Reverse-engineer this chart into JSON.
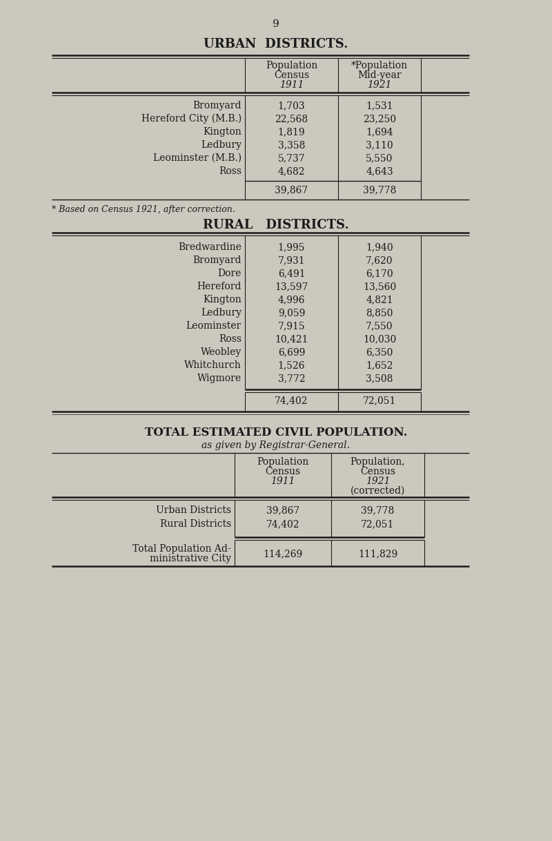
{
  "page_number": "9",
  "bg_color": "#cbc8be",
  "text_color": "#1a1a1a",
  "urban_title": "URBAN  DISTRICTS.",
  "urban_col1_header": [
    "Population",
    "Census",
    "1911"
  ],
  "urban_col2_header": [
    "*Population",
    "Mid-year",
    "1921"
  ],
  "urban_rows": [
    [
      "Bromyard",
      "1,703",
      "1,531"
    ],
    [
      "Hereford City (M.B.)",
      "22,568",
      "23,250"
    ],
    [
      "Kington",
      "1,819",
      "1,694"
    ],
    [
      "Ledbury",
      "3,358",
      "3,110"
    ],
    [
      "Leominster (M.B.)",
      "5,737",
      "5,550"
    ],
    [
      "Ross",
      "4,682",
      "4,643"
    ]
  ],
  "urban_total": [
    "39,867",
    "39,778"
  ],
  "urban_footnote": "* Based on Census 1921, after correction.",
  "rural_title": "RURAL   DISTRICTS.",
  "rural_rows": [
    [
      "Bredwardine",
      "1,995",
      "1,940"
    ],
    [
      "Bromyard",
      "7,931",
      "7,620"
    ],
    [
      "Dore",
      "6,491",
      "6,170"
    ],
    [
      "Hereford",
      "13,597",
      "13,560"
    ],
    [
      "Kington",
      "4,996",
      "4,821"
    ],
    [
      "Ledbury",
      "9,059",
      "8,850"
    ],
    [
      "Leominster",
      "7,915",
      "7,550"
    ],
    [
      "Ross",
      "10,421",
      "10,030"
    ],
    [
      "Weobley",
      "6,699",
      "6,350"
    ],
    [
      "Whitchurch",
      "1,526",
      "1,652"
    ],
    [
      "Wigmore",
      "3,772",
      "3,508"
    ]
  ],
  "rural_total": [
    "74,402",
    "72,051"
  ],
  "total_title": "TOTAL ESTIMATED CIVIL POPULATION.",
  "total_subtitle": "as given by Registrar-General.",
  "total_col1_header": [
    "Population",
    "Census",
    "1911",
    ""
  ],
  "total_col2_header": [
    "Population,",
    "Census",
    "1921",
    "(corrected)"
  ],
  "total_rows": [
    [
      "Urban Districts",
      "39,867",
      "39,778"
    ],
    [
      "Rural Districts",
      "74,402",
      "72,051"
    ]
  ],
  "total_final_label_1": "Total Population Ad-",
  "total_final_label_2": "ministrative City",
  "total_final_values": [
    "114,269",
    "111,829"
  ]
}
